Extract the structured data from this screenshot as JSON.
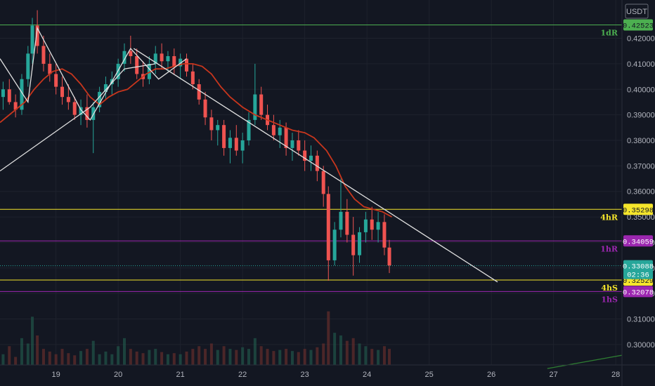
{
  "chart_data": {
    "type": "candlestick",
    "unit": "USDT",
    "x_ticks": [
      "19",
      "20",
      "21",
      "22",
      "23",
      "24",
      "25",
      "26",
      "27",
      "28"
    ],
    "x_range": [
      18.1,
      28.1
    ],
    "y_range": [
      0.292,
      0.435
    ],
    "y_ticks": [
      "0.30000",
      "0.31000",
      "0.32000",
      "0.33000",
      "0.34000",
      "0.35000",
      "0.36000",
      "0.37000",
      "0.38000",
      "0.39000",
      "0.40000",
      "0.41000",
      "0.42000"
    ],
    "grid": true,
    "levels": [
      {
        "label": "1dR",
        "price": 0.42523,
        "tag": "0.42523",
        "color": "#4caf50",
        "tag_text_color": "#131722"
      },
      {
        "label": "4hR",
        "price": 0.35298,
        "tag": "0.35298",
        "color": "#f5e52b",
        "tag_text_color": "#131722"
      },
      {
        "label": "1hR",
        "price": 0.34059,
        "tag": "0.34059",
        "color": "#9c27b0",
        "tag_text_color": "#ffffff"
      },
      {
        "label": "4hS",
        "price": 0.32529,
        "tag": "0.32529",
        "color": "#f5e52b",
        "tag_text_color": "#131722"
      },
      {
        "label": "1hS",
        "price": 0.32078,
        "tag": "0.32078",
        "color": "#9c27b0",
        "tag_text_color": "#ffffff"
      }
    ],
    "last_price": {
      "price": 0.33088,
      "tag": "0.33088",
      "countdown": "02:36",
      "color": "#26a69a"
    },
    "ma_line": {
      "color": "#c8361d",
      "points": [
        [
          18.1,
          0.387
        ],
        [
          18.3,
          0.391
        ],
        [
          18.5,
          0.395
        ],
        [
          18.65,
          0.4
        ],
        [
          18.8,
          0.404
        ],
        [
          18.95,
          0.407
        ],
        [
          19.1,
          0.408
        ],
        [
          19.25,
          0.406
        ],
        [
          19.4,
          0.402
        ],
        [
          19.55,
          0.397
        ],
        [
          19.7,
          0.394
        ],
        [
          19.85,
          0.397
        ],
        [
          20.0,
          0.399
        ],
        [
          20.15,
          0.4
        ],
        [
          20.3,
          0.403
        ],
        [
          20.45,
          0.406
        ],
        [
          20.6,
          0.408
        ],
        [
          20.75,
          0.408
        ],
        [
          20.9,
          0.409
        ],
        [
          21.05,
          0.41
        ],
        [
          21.2,
          0.41
        ],
        [
          21.35,
          0.409
        ],
        [
          21.5,
          0.406
        ],
        [
          21.65,
          0.401
        ],
        [
          21.8,
          0.397
        ],
        [
          22.0,
          0.393
        ],
        [
          22.2,
          0.39
        ],
        [
          22.4,
          0.388
        ],
        [
          22.6,
          0.386
        ],
        [
          22.8,
          0.384
        ],
        [
          23.0,
          0.383
        ],
        [
          23.15,
          0.381
        ],
        [
          23.35,
          0.376
        ],
        [
          23.5,
          0.37
        ],
        [
          23.65,
          0.362
        ],
        [
          23.8,
          0.357
        ],
        [
          23.95,
          0.354
        ],
        [
          24.1,
          0.353
        ],
        [
          24.25,
          0.352
        ],
        [
          24.4,
          0.35
        ]
      ]
    },
    "trend_lines": [
      {
        "color": "#e0e0e0",
        "points": [
          [
            18.1,
            0.368
          ],
          [
            19.55,
            0.393
          ],
          [
            20.1,
            0.408
          ],
          [
            20.6,
            0.41
          ]
        ]
      },
      {
        "color": "#e0e0e0",
        "points": [
          [
            18.1,
            0.412
          ],
          [
            18.55,
            0.395
          ],
          [
            18.7,
            0.424
          ],
          [
            19.4,
            0.392
          ],
          [
            19.55,
            0.388
          ],
          [
            20.2,
            0.416
          ],
          [
            20.65,
            0.404
          ],
          [
            21.1,
            0.412
          ]
        ]
      },
      {
        "color": "#e0e0e0",
        "points": [
          [
            20.25,
            0.416
          ],
          [
            26.1,
            0.3245
          ]
        ]
      },
      {
        "color": "#2e7d32",
        "points": [
          [
            26.9,
            0.2906
          ],
          [
            28.1,
            0.2958
          ]
        ]
      }
    ],
    "candles": [
      [
        18.15,
        0.397,
        0.403,
        0.392,
        0.4
      ],
      [
        18.25,
        0.4,
        0.404,
        0.394,
        0.395
      ],
      [
        18.35,
        0.395,
        0.398,
        0.389,
        0.392
      ],
      [
        18.45,
        0.392,
        0.406,
        0.39,
        0.404
      ],
      [
        18.55,
        0.404,
        0.417,
        0.401,
        0.414
      ],
      [
        18.62,
        0.414,
        0.428,
        0.41,
        0.425
      ],
      [
        18.7,
        0.425,
        0.431,
        0.414,
        0.417
      ],
      [
        18.8,
        0.417,
        0.421,
        0.407,
        0.41
      ],
      [
        18.9,
        0.41,
        0.414,
        0.403,
        0.406
      ],
      [
        19.0,
        0.406,
        0.41,
        0.398,
        0.401
      ],
      [
        19.1,
        0.401,
        0.405,
        0.394,
        0.397
      ],
      [
        19.2,
        0.397,
        0.402,
        0.392,
        0.395
      ],
      [
        19.3,
        0.395,
        0.397,
        0.388,
        0.39
      ],
      [
        19.4,
        0.39,
        0.396,
        0.386,
        0.393
      ],
      [
        19.5,
        0.393,
        0.398,
        0.385,
        0.388
      ],
      [
        19.6,
        0.388,
        0.395,
        0.375,
        0.393
      ],
      [
        19.7,
        0.393,
        0.401,
        0.391,
        0.399
      ],
      [
        19.8,
        0.399,
        0.405,
        0.396,
        0.402
      ],
      [
        19.9,
        0.402,
        0.407,
        0.398,
        0.404
      ],
      [
        20.0,
        0.404,
        0.412,
        0.401,
        0.41
      ],
      [
        20.1,
        0.41,
        0.418,
        0.407,
        0.415
      ],
      [
        20.2,
        0.415,
        0.421,
        0.41,
        0.413
      ],
      [
        20.3,
        0.413,
        0.416,
        0.404,
        0.406
      ],
      [
        20.4,
        0.406,
        0.411,
        0.401,
        0.404
      ],
      [
        20.5,
        0.404,
        0.413,
        0.402,
        0.41
      ],
      [
        20.6,
        0.41,
        0.417,
        0.406,
        0.414
      ],
      [
        20.7,
        0.414,
        0.418,
        0.408,
        0.411
      ],
      [
        20.8,
        0.411,
        0.415,
        0.407,
        0.413
      ],
      [
        20.9,
        0.413,
        0.416,
        0.406,
        0.409
      ],
      [
        21.0,
        0.409,
        0.414,
        0.404,
        0.412
      ],
      [
        21.1,
        0.412,
        0.414,
        0.405,
        0.407
      ],
      [
        21.2,
        0.407,
        0.41,
        0.4,
        0.402
      ],
      [
        21.3,
        0.402,
        0.404,
        0.394,
        0.396
      ],
      [
        21.4,
        0.396,
        0.399,
        0.386,
        0.389
      ],
      [
        21.5,
        0.389,
        0.392,
        0.38,
        0.384
      ],
      [
        21.6,
        0.384,
        0.388,
        0.378,
        0.386
      ],
      [
        21.7,
        0.386,
        0.388,
        0.374,
        0.377
      ],
      [
        21.8,
        0.377,
        0.384,
        0.371,
        0.381
      ],
      [
        21.9,
        0.381,
        0.386,
        0.374,
        0.376
      ],
      [
        22.0,
        0.376,
        0.383,
        0.371,
        0.38
      ],
      [
        22.1,
        0.38,
        0.391,
        0.378,
        0.388
      ],
      [
        22.2,
        0.388,
        0.41,
        0.386,
        0.398
      ],
      [
        22.3,
        0.398,
        0.401,
        0.388,
        0.39
      ],
      [
        22.4,
        0.39,
        0.394,
        0.384,
        0.386
      ],
      [
        22.5,
        0.386,
        0.39,
        0.38,
        0.382
      ],
      [
        22.6,
        0.382,
        0.388,
        0.377,
        0.385
      ],
      [
        22.7,
        0.385,
        0.387,
        0.374,
        0.377
      ],
      [
        22.8,
        0.377,
        0.383,
        0.372,
        0.38
      ],
      [
        22.9,
        0.38,
        0.384,
        0.374,
        0.376
      ],
      [
        23.0,
        0.376,
        0.38,
        0.368,
        0.372
      ],
      [
        23.1,
        0.372,
        0.378,
        0.368,
        0.374
      ],
      [
        23.2,
        0.374,
        0.376,
        0.364,
        0.368
      ],
      [
        23.3,
        0.368,
        0.37,
        0.354,
        0.359
      ],
      [
        23.38,
        0.359,
        0.362,
        0.325,
        0.333
      ],
      [
        23.48,
        0.333,
        0.348,
        0.331,
        0.345
      ],
      [
        23.58,
        0.345,
        0.365,
        0.342,
        0.352
      ],
      [
        23.68,
        0.352,
        0.357,
        0.34,
        0.343
      ],
      [
        23.78,
        0.343,
        0.35,
        0.327,
        0.335
      ],
      [
        23.88,
        0.335,
        0.346,
        0.332,
        0.344
      ],
      [
        23.98,
        0.344,
        0.352,
        0.34,
        0.349
      ],
      [
        24.08,
        0.349,
        0.354,
        0.341,
        0.345
      ],
      [
        24.18,
        0.345,
        0.352,
        0.34,
        0.348
      ],
      [
        24.28,
        0.348,
        0.351,
        0.335,
        0.338
      ],
      [
        24.36,
        0.338,
        0.341,
        0.328,
        0.331
      ]
    ],
    "volume_bars": {
      "color_up": "#1f4d45",
      "color_down": "#5a2a2a",
      "base_price": 0.292,
      "max_price": 0.313
    }
  }
}
